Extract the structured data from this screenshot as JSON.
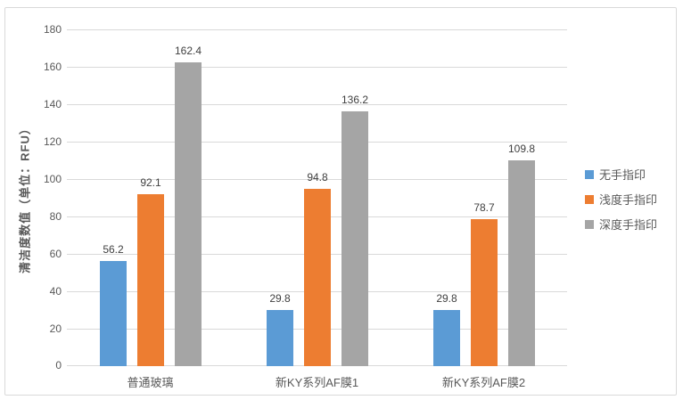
{
  "chart_data": {
    "type": "bar",
    "title": "",
    "ylabel": "清洁度数值（单位：RFU）",
    "xlabel": "",
    "categories": [
      "普通玻璃",
      "新KY系列AF膜1",
      "新KY系列AF膜2"
    ],
    "series": [
      {
        "name": "无手指印",
        "color": "#5B9BD5",
        "values": [
          56.2,
          29.8,
          29.8
        ]
      },
      {
        "name": "浅度手指印",
        "color": "#ED7D31",
        "values": [
          92.1,
          94.8,
          78.7
        ]
      },
      {
        "name": "深度手指印",
        "color": "#A5A5A5",
        "values": [
          162.4,
          136.2,
          109.8
        ]
      }
    ],
    "data_labels": [
      [
        "56.2",
        "29.8",
        "29.8"
      ],
      [
        "92.1",
        "94.8",
        "78.7"
      ],
      [
        "162.4",
        "136.2",
        "109.8"
      ]
    ],
    "ylim": [
      0,
      180
    ],
    "yticks": [
      0,
      20,
      40,
      60,
      80,
      100,
      120,
      140,
      160,
      180
    ],
    "grid": true,
    "legend_position": "right"
  },
  "colors": {
    "gridline": "#D9D9D9",
    "frame_border": "#D9D9D9",
    "axis_text": "#595959",
    "data_label_text": "#404040",
    "background": "#FFFFFF"
  }
}
